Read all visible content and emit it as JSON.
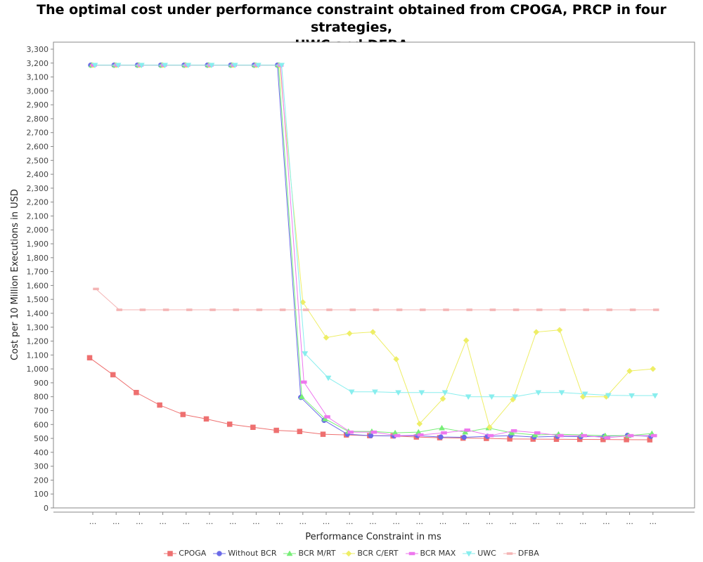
{
  "chart_data": {
    "type": "line",
    "title_line1": "The optimal cost under performance constraint obtained from CPOGA, PRCP in four strategies,",
    "title_line2": "UWC and DFBA",
    "xlabel": "Performance Constraint in ms",
    "ylabel": "Cost per 10 Million Executions in USD",
    "ylim": [
      0,
      3300
    ],
    "ytick_step": 100,
    "categories": [
      "...",
      "...",
      "...",
      "...",
      "...",
      "...",
      "...",
      "...",
      "...",
      "...",
      "...",
      "...",
      "...",
      "...",
      "...",
      "...",
      "...",
      "...",
      "...",
      "...",
      "...",
      "...",
      "...",
      "...",
      "..."
    ],
    "grid": false,
    "legend_position": "bottom",
    "series": [
      {
        "name": "CPOGA",
        "color": "#ee7070",
        "marker": "square",
        "values": [
          1080,
          958,
          830,
          740,
          672,
          640,
          602,
          580,
          558,
          550,
          530,
          525,
          520,
          518,
          510,
          505,
          502,
          500,
          496,
          495,
          494,
          493,
          492,
          491,
          490
        ]
      },
      {
        "name": "Without BCR",
        "color": "#6a6ae8",
        "marker": "circle",
        "values": [
          3185,
          3185,
          3185,
          3185,
          3185,
          3185,
          3185,
          3185,
          3185,
          795,
          630,
          530,
          520,
          518,
          520,
          510,
          508,
          515,
          520,
          510,
          515,
          512,
          515,
          522,
          515
        ]
      },
      {
        "name": "BCR M/RT",
        "color": "#77ee77",
        "marker": "triangle-up",
        "values": [
          3185,
          3185,
          3185,
          3185,
          3185,
          3185,
          3185,
          3185,
          3185,
          800,
          640,
          550,
          550,
          540,
          545,
          575,
          545,
          575,
          540,
          525,
          530,
          525,
          520,
          520,
          535
        ]
      },
      {
        "name": "BCR C/ERT",
        "color": "#eeee66",
        "marker": "diamond",
        "values": [
          3185,
          3185,
          3185,
          3185,
          3185,
          3185,
          3185,
          3185,
          3185,
          1480,
          1225,
          1255,
          1265,
          1070,
          605,
          785,
          1205,
          580,
          780,
          1265,
          1280,
          800,
          800,
          985,
          1000
        ]
      },
      {
        "name": "BCR MAX",
        "color": "#ee77ee",
        "marker": "rect",
        "values": [
          3185,
          3185,
          3185,
          3185,
          3185,
          3185,
          3185,
          3185,
          3185,
          905,
          655,
          545,
          545,
          520,
          525,
          540,
          560,
          520,
          555,
          540,
          520,
          520,
          505,
          520,
          520
        ]
      },
      {
        "name": "UWC",
        "color": "#88eeee",
        "marker": "triangle-down",
        "values": [
          3185,
          3185,
          3185,
          3185,
          3185,
          3185,
          3185,
          3185,
          3185,
          1110,
          935,
          835,
          835,
          830,
          830,
          830,
          800,
          800,
          800,
          830,
          830,
          820,
          810,
          808,
          808
        ]
      },
      {
        "name": "DFBA",
        "color": "#f4b4b4",
        "marker": "hbar",
        "values": [
          1575,
          1425,
          1425,
          1425,
          1425,
          1425,
          1425,
          1425,
          1425,
          1425,
          1425,
          1425,
          1425,
          1425,
          1425,
          1425,
          1425,
          1425,
          1425,
          1425,
          1425,
          1425,
          1425,
          1425,
          1425
        ]
      }
    ]
  }
}
